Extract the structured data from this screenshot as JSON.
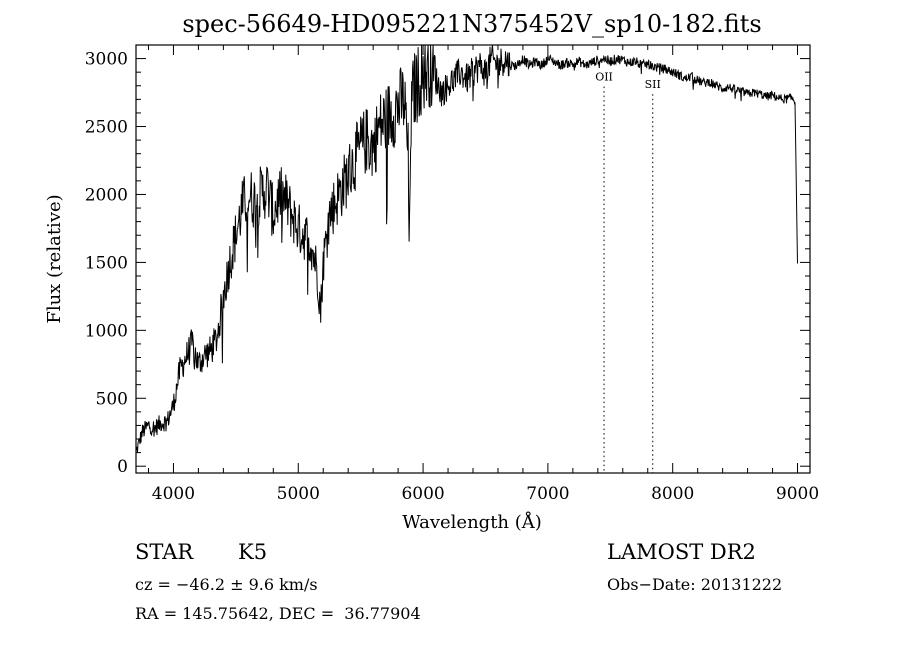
{
  "chart_data": {
    "type": "line",
    "title": "spec-56649-HD095221N375452V_sp10-182.fits",
    "xlabel": "Wavelength (Å)",
    "ylabel": "Flux (relative)",
    "xlim": [
      3700,
      9100
    ],
    "ylim": [
      -50,
      3100
    ],
    "x_ticks": [
      4000,
      5000,
      6000,
      7000,
      8000,
      9000
    ],
    "y_ticks": [
      0,
      500,
      1000,
      1500,
      2000,
      2500,
      3000
    ],
    "grid": false,
    "line_color": "#000000",
    "series": [
      {
        "x": [
          3700,
          3750,
          3800,
          3850,
          3900,
          3950,
          4000,
          4050,
          4100,
          4150,
          4200,
          4250,
          4300,
          4350,
          4400,
          4450,
          4500,
          4550,
          4600,
          4650,
          4700,
          4750,
          4800,
          4850,
          4900,
          4950,
          5000,
          5050,
          5100,
          5150,
          5180,
          5200,
          5250,
          5300,
          5350,
          5400,
          5450,
          5500,
          5550,
          5600,
          5650,
          5700,
          5750,
          5800,
          5850,
          5880,
          5890,
          5900,
          5920,
          5950,
          6000,
          6050,
          6100,
          6150,
          6200,
          6250,
          6300,
          6350,
          6400,
          6450,
          6500,
          6550,
          6600,
          6650,
          6700,
          6750,
          6800,
          6850,
          6900,
          6950,
          7000,
          7050,
          7100,
          7150,
          7200,
          7250,
          7300,
          7350,
          7400,
          7450,
          7500,
          7550,
          7600,
          7650,
          7700,
          7750,
          7800,
          7850,
          7900,
          7950,
          8000,
          8050,
          8100,
          8150,
          8200,
          8250,
          8300,
          8350,
          8400,
          8450,
          8500,
          8550,
          8600,
          8650,
          8700,
          8750,
          8800,
          8850,
          8900,
          8950,
          8980,
          8990,
          9000
        ],
        "y": [
          100,
          250,
          300,
          280,
          320,
          330,
          450,
          700,
          800,
          900,
          750,
          820,
          850,
          950,
          1250,
          1500,
          1700,
          1900,
          2000,
          1950,
          2000,
          2050,
          1850,
          2000,
          1950,
          1850,
          1750,
          1700,
          1650,
          1450,
          1150,
          1500,
          1850,
          1950,
          2050,
          2150,
          2250,
          2350,
          2400,
          2350,
          2500,
          2550,
          2600,
          2650,
          2700,
          2300,
          1500,
          2500,
          2750,
          2800,
          2900,
          2950,
          2850,
          2750,
          2800,
          2850,
          2900,
          2850,
          2900,
          2950,
          2900,
          3000,
          2950,
          3000,
          2950,
          2950,
          3000,
          2950,
          2980,
          2950,
          3000,
          2980,
          2950,
          2970,
          2960,
          2980,
          2950,
          2970,
          2990,
          3000,
          2980,
          3000,
          2990,
          2970,
          2980,
          2950,
          2960,
          2940,
          2930,
          2920,
          2900,
          2880,
          2850,
          2870,
          2840,
          2820,
          2830,
          2800,
          2780,
          2790,
          2770,
          2760,
          2740,
          2750,
          2740,
          2720,
          2730,
          2710,
          2700,
          2710,
          2690,
          2100,
          1500
        ]
      }
    ],
    "annotations": [
      {
        "label": "OII",
        "x": 7450
      },
      {
        "label": "SII",
        "x": 7840
      }
    ]
  },
  "footer": {
    "object_class": "STAR",
    "subclass": "K5",
    "cz": "cz = −46.2 ± 9.6 km/s",
    "coords": "RA = 145.75642, DEC =  36.77904",
    "survey": "LAMOST DR2",
    "obs_date": "Obs−Date: 20131222"
  }
}
